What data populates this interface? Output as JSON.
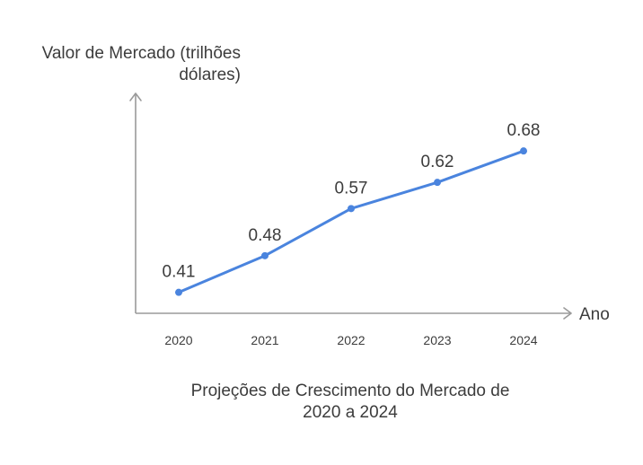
{
  "chart_data": {
    "type": "line",
    "title": "Projeções de Crescimento do Mercado de 2020 a 2024",
    "xlabel": "Ano",
    "ylabel": "Valor de Mercado (trilhões dólares)",
    "categories": [
      "2020",
      "2021",
      "2022",
      "2023",
      "2024"
    ],
    "values": [
      0.41,
      0.48,
      0.57,
      0.62,
      0.68
    ],
    "data_labels": [
      "0.41",
      "0.48",
      "0.57",
      "0.62",
      "0.68"
    ],
    "ylim": [
      0.37,
      0.79
    ],
    "grid": false,
    "legend": "none",
    "line_color": "#4a84de",
    "axis_color": "#9a9a9a"
  }
}
